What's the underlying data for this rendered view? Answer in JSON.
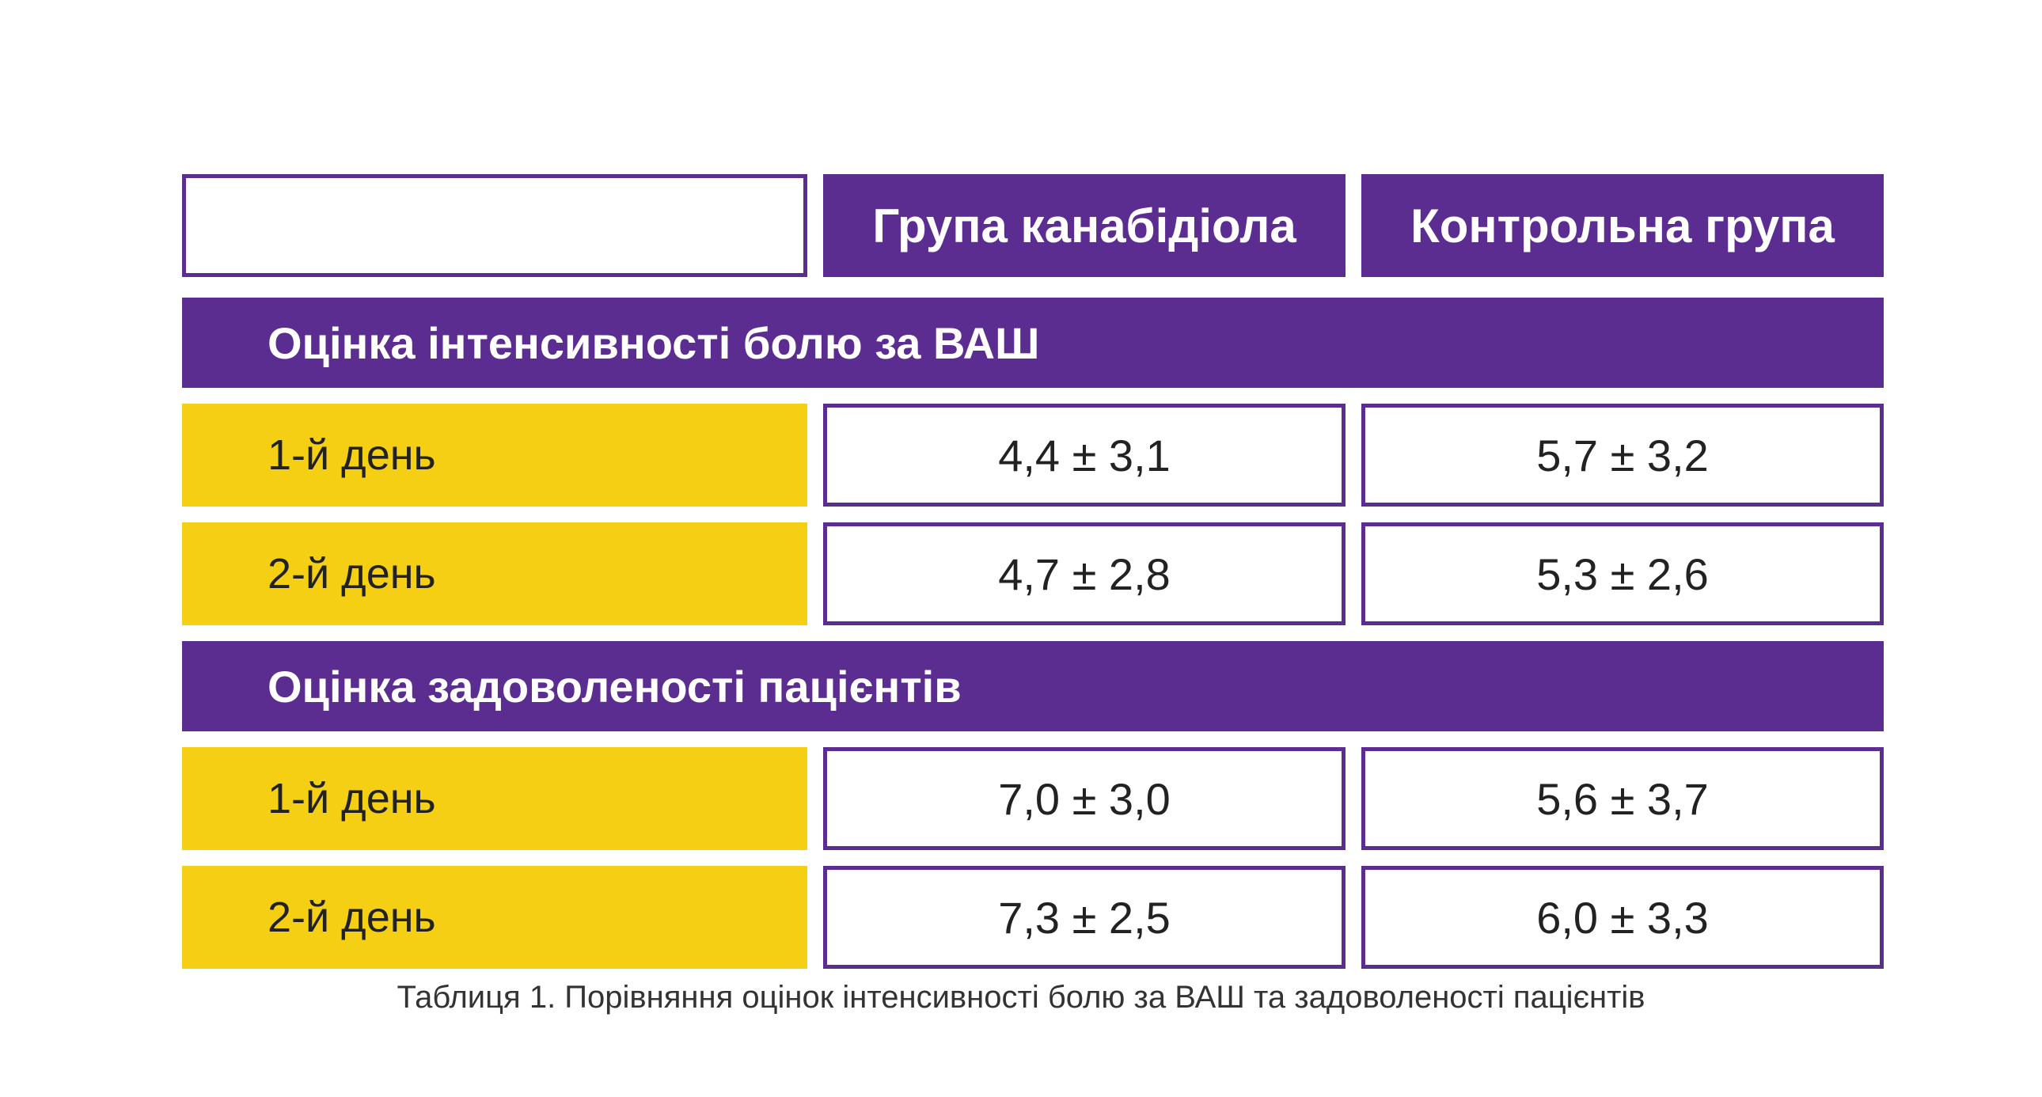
{
  "table": {
    "columns": [
      "Група канабідіола",
      "Контрольна група"
    ],
    "sections": [
      {
        "title": "Оцінка інтенсивності болю за ВАШ",
        "rows": [
          {
            "label": "1-й день",
            "values": [
              "4,4 ± 3,1",
              "5,7 ± 3,2"
            ]
          },
          {
            "label": "2-й день",
            "values": [
              "4,7 ± 2,8",
              "5,3 ± 2,6"
            ]
          }
        ]
      },
      {
        "title": "Оцінка задоволеності пацієнтів",
        "rows": [
          {
            "label": "1-й день",
            "values": [
              "7,0 ± 3,0",
              "5,6 ± 3,7"
            ]
          },
          {
            "label": "2-й день",
            "values": [
              "7,3 ± 2,5",
              "6,0 ± 3,3"
            ]
          }
        ]
      }
    ]
  },
  "caption": "Таблиця 1. Порівняння оцінок інтенсивності болю за ВАШ та задоволеності пацієнтів",
  "colors": {
    "purple": "#5c2d91",
    "yellow": "#f5cf13"
  }
}
